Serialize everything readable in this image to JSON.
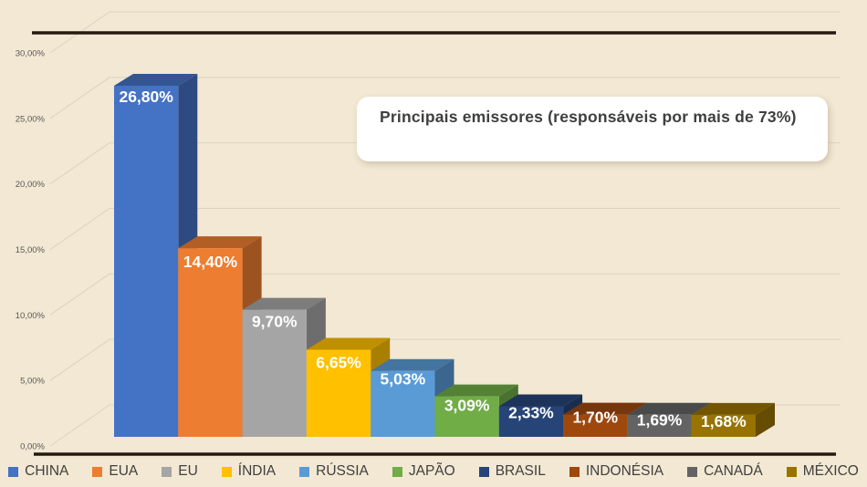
{
  "chart_data": {
    "type": "bar",
    "style": "3d-column",
    "title": "Principais emissores (responsáveis por mais de 73%)",
    "categories": [
      "CHINA",
      "EUA",
      "EU",
      "ÍNDIA",
      "RÚSSIA",
      "JAPÃO",
      "BRASIL",
      "INDONÉSIA",
      "CANADÁ",
      "MÉXICO"
    ],
    "values": [
      26.8,
      14.4,
      9.7,
      6.65,
      5.03,
      3.09,
      2.33,
      1.7,
      1.69,
      1.68
    ],
    "value_labels": [
      "26,80%",
      "14,40%",
      "9,70%",
      "6,65%",
      "5,03%",
      "3,09%",
      "2,33%",
      "1,70%",
      "1,69%",
      "1,68%"
    ],
    "colors": [
      "#4472C4",
      "#ED7D31",
      "#A5A5A5",
      "#FFC000",
      "#5B9BD5",
      "#70AD47",
      "#264478",
      "#9E480E",
      "#636363",
      "#997300"
    ],
    "xlabel": "",
    "ylabel": "",
    "ylim": [
      0,
      30
    ],
    "ytick_step": 5,
    "ytick_labels": [
      "0,00%",
      "5,00%",
      "10,00%",
      "15,00%",
      "20,00%",
      "25,00%",
      "30,00%"
    ],
    "grid": true,
    "legend_position": "bottom",
    "background_color": "#F2E8D3",
    "gridline_color": "#DCD3C0",
    "border_line_color": "#241A10",
    "value_label_color": "#FFFFFF",
    "axis_label_color": "#595959",
    "legend_text_color": "#3F3F3F"
  }
}
